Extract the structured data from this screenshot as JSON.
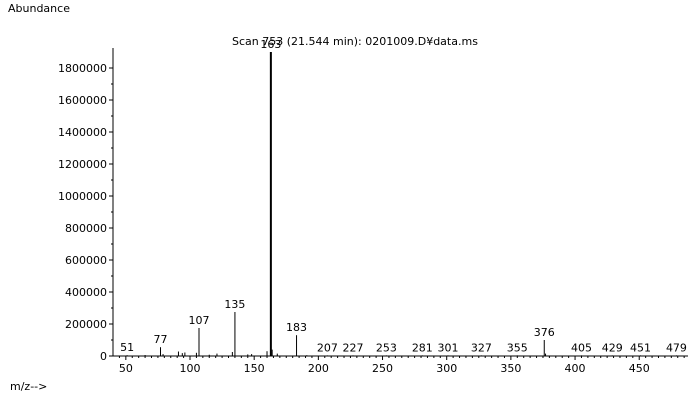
{
  "chart_data": {
    "type": "bar",
    "title": "Scan 753 (21.544 min): 0201009.D¥data.ms",
    "xlabel": "m/z-->",
    "ylabel": "Abundance",
    "xlim": [
      40,
      488
    ],
    "ylim": [
      0,
      1900000
    ],
    "xticks": [
      50,
      100,
      150,
      200,
      250,
      300,
      350,
      400,
      450
    ],
    "yticks": [
      0,
      200000,
      400000,
      600000,
      800000,
      1000000,
      1200000,
      1400000,
      1600000,
      1800000
    ],
    "labeled_peaks": [
      {
        "mz": 51,
        "abundance": 5000
      },
      {
        "mz": 77,
        "abundance": 55000
      },
      {
        "mz": 107,
        "abundance": 175000
      },
      {
        "mz": 135,
        "abundance": 275000
      },
      {
        "mz": 163,
        "abundance": 1900000
      },
      {
        "mz": 183,
        "abundance": 130000
      },
      {
        "mz": 207,
        "abundance": 4000
      },
      {
        "mz": 227,
        "abundance": 4000
      },
      {
        "mz": 253,
        "abundance": 4000
      },
      {
        "mz": 281,
        "abundance": 4000
      },
      {
        "mz": 301,
        "abundance": 4000
      },
      {
        "mz": 327,
        "abundance": 4000
      },
      {
        "mz": 355,
        "abundance": 4000
      },
      {
        "mz": 376,
        "abundance": 100000
      },
      {
        "mz": 405,
        "abundance": 4000
      },
      {
        "mz": 429,
        "abundance": 4000
      },
      {
        "mz": 451,
        "abundance": 4000
      },
      {
        "mz": 479,
        "abundance": 4000
      }
    ],
    "minor_peaks": [
      {
        "mz": 65,
        "abundance": 6000
      },
      {
        "mz": 79,
        "abundance": 12000
      },
      {
        "mz": 91,
        "abundance": 28000
      },
      {
        "mz": 94,
        "abundance": 18000
      },
      {
        "mz": 96,
        "abundance": 22000
      },
      {
        "mz": 105,
        "abundance": 20000
      },
      {
        "mz": 115,
        "abundance": 8000
      },
      {
        "mz": 121,
        "abundance": 15000
      },
      {
        "mz": 133,
        "abundance": 25000
      },
      {
        "mz": 145,
        "abundance": 10000
      },
      {
        "mz": 148,
        "abundance": 12000
      },
      {
        "mz": 160,
        "abundance": 30000
      },
      {
        "mz": 164,
        "abundance": 40000
      },
      {
        "mz": 168,
        "abundance": 15000
      },
      {
        "mz": 191,
        "abundance": 5000
      },
      {
        "mz": 377,
        "abundance": 15000
      }
    ]
  }
}
